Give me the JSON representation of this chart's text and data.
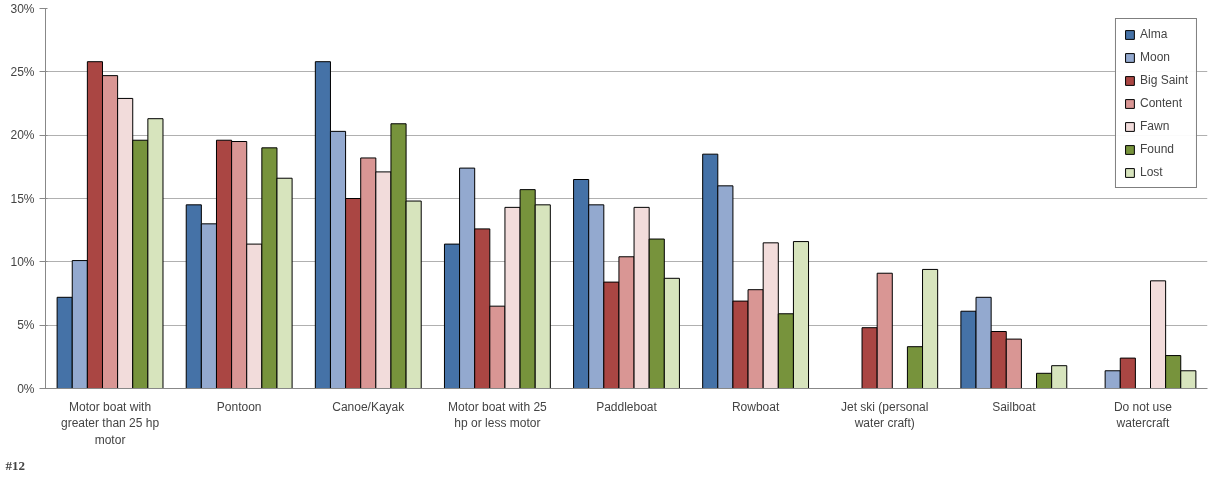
{
  "chart_data": {
    "type": "bar",
    "categories": [
      "Motor boat with greater than 25 hp motor",
      "Pontoon",
      "Canoe/Kayak",
      "Motor boat with 25 hp or less motor",
      "Paddleboat",
      "Rowboat",
      "Jet ski (personal water craft)",
      "Sailboat",
      "Do not use watercraft"
    ],
    "series": [
      {
        "name": "Alma",
        "color": "#4572a7",
        "values": [
          7.2,
          14.5,
          25.8,
          11.4,
          16.5,
          18.5,
          null,
          6.1,
          null
        ]
      },
      {
        "name": "Moon",
        "color": "#93a9cf",
        "values": [
          10.1,
          13.0,
          20.3,
          17.4,
          14.5,
          16.0,
          null,
          7.2,
          1.4
        ]
      },
      {
        "name": "Big Saint",
        "color": "#aa4643",
        "values": [
          25.8,
          19.6,
          15.0,
          12.6,
          8.4,
          6.9,
          4.8,
          4.5,
          2.4
        ]
      },
      {
        "name": "Content",
        "color": "#d99694",
        "values": [
          24.7,
          19.5,
          18.2,
          6.5,
          10.4,
          7.8,
          9.1,
          3.9,
          null
        ]
      },
      {
        "name": "Fawn",
        "color": "#f2dcdb",
        "values": [
          22.9,
          11.4,
          17.1,
          14.3,
          14.3,
          11.5,
          null,
          null,
          8.5
        ]
      },
      {
        "name": "Found",
        "color": "#77933c",
        "values": [
          19.6,
          19.0,
          20.9,
          15.7,
          11.8,
          5.9,
          3.3,
          1.2,
          2.6
        ]
      },
      {
        "name": "Lost",
        "color": "#d7e4bd",
        "values": [
          21.3,
          16.6,
          14.8,
          14.5,
          8.7,
          11.6,
          9.4,
          1.8,
          1.4
        ]
      }
    ],
    "ylim": [
      0,
      30
    ],
    "yticks": [
      {
        "value": 0,
        "label": "0%"
      },
      {
        "value": 5,
        "label": "5%"
      },
      {
        "value": 10,
        "label": "10%"
      },
      {
        "value": 15,
        "label": "15%"
      },
      {
        "value": 20,
        "label": "20%"
      },
      {
        "value": 25,
        "label": "25%"
      },
      {
        "value": 30,
        "label": "30%"
      }
    ],
    "grid": "y",
    "legend": "top right",
    "annotations": [
      "#12"
    ]
  }
}
